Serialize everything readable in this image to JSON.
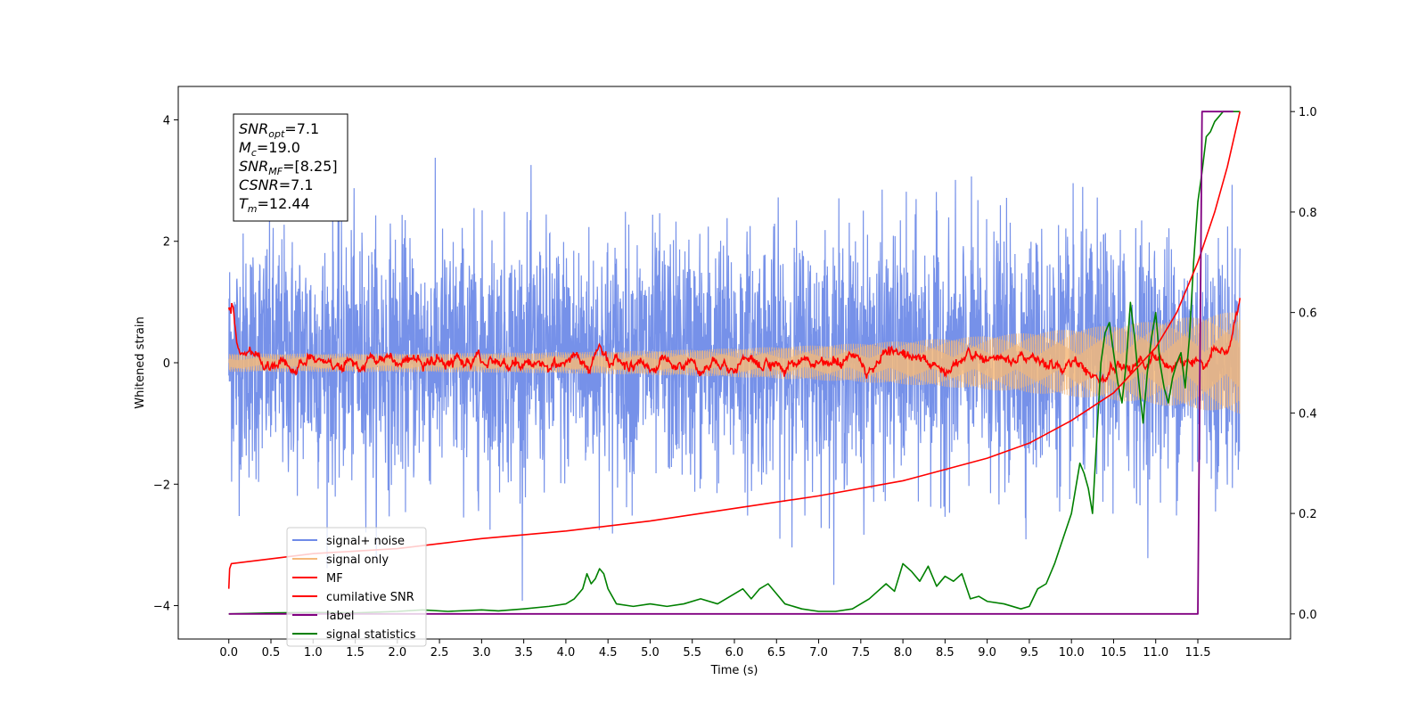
{
  "chart_data": {
    "type": "line",
    "xlabel": "Time (s)",
    "ylabel": "Whitened strain",
    "xlim": [
      -0.6,
      12.6
    ],
    "ylim": [
      -4.55,
      4.55
    ],
    "y2lim": [
      -0.05,
      1.05
    ],
    "x_ticks": [
      0.0,
      0.5,
      1.0,
      1.5,
      2.0,
      2.5,
      3.0,
      3.5,
      4.0,
      4.5,
      5.0,
      5.5,
      6.0,
      6.5,
      7.0,
      7.5,
      8.0,
      8.5,
      9.0,
      9.5,
      10.0,
      10.5,
      11.0,
      11.5
    ],
    "x_tick_labels": [
      "0.0",
      "0.5",
      "1.0",
      "1.5",
      "2.0",
      "2.5",
      "3.0",
      "3.5",
      "4.0",
      "4.5",
      "5.0",
      "5.5",
      "6.0",
      "6.5",
      "7.0",
      "7.5",
      "8.0",
      "8.5",
      "9.0",
      "9.5",
      "10.0",
      "10.5",
      "11.0",
      "11.5"
    ],
    "y_ticks": [
      -4,
      -2,
      0,
      2,
      4
    ],
    "y_tick_labels": [
      "−4",
      "−2",
      "0",
      "2",
      "4"
    ],
    "y2_ticks": [
      0.0,
      0.2,
      0.4,
      0.6,
      0.8,
      1.0
    ],
    "y2_tick_labels": [
      "0.0",
      "0.2",
      "0.4",
      "0.6",
      "0.8",
      "1.0"
    ],
    "grid": false,
    "legend_position": "bottom-left",
    "annotation": {
      "lines": [
        {
          "sym": "SNR",
          "sub": "opt",
          "rest": "=7.1"
        },
        {
          "sym": "M",
          "sub": "c",
          "rest": "=19.0"
        },
        {
          "sym": "SNR",
          "sub": "MF",
          "rest": "=[8.25]"
        },
        {
          "sym": "CSNR",
          "sub": "",
          "rest": "=7.1"
        },
        {
          "sym": "T",
          "sub": "m",
          "rest": "=12.44"
        }
      ]
    },
    "series": [
      {
        "name": "signal+ noise",
        "color": "#6f8be8",
        "axis": "left",
        "noise_envelope": {
          "x_range": [
            0.0,
            12.0
          ],
          "typical_range": [
            -2.7,
            2.9
          ],
          "extremes": [
            -4.15,
            4.1
          ]
        }
      },
      {
        "name": "signal only",
        "color": "#f5b87a",
        "axis": "left",
        "chirp": {
          "x_range": [
            0.0,
            12.0
          ],
          "amplitude_start": 0.15,
          "amplitude_end": 0.85
        }
      },
      {
        "name": "MF",
        "color": "#ff0000",
        "axis": "left",
        "x": [
          0.0,
          0.05,
          0.1,
          0.2,
          0.4,
          0.8,
          1.5,
          2.5,
          4.0,
          6.0,
          8.0,
          9.5,
          10.5,
          11.5,
          11.9,
          12.0
        ],
        "y": [
          0.9,
          0.95,
          0.3,
          0.2,
          0.05,
          0.0,
          0.05,
          0.0,
          0.0,
          0.0,
          0.05,
          -0.05,
          -0.05,
          0.0,
          0.3,
          0.95
        ]
      },
      {
        "name": "cumilative SNR",
        "color": "#ff0000",
        "axis": "right",
        "x": [
          0.0,
          0.01,
          0.03,
          1.0,
          2.0,
          3.0,
          4.0,
          5.0,
          6.0,
          7.0,
          8.0,
          9.0,
          9.5,
          10.0,
          10.5,
          11.0,
          11.25,
          11.5,
          11.7,
          11.85,
          12.0
        ],
        "y": [
          0.05,
          0.09,
          0.1,
          0.12,
          0.13,
          0.15,
          0.165,
          0.185,
          0.21,
          0.235,
          0.265,
          0.31,
          0.34,
          0.385,
          0.44,
          0.53,
          0.6,
          0.7,
          0.8,
          0.89,
          1.0
        ]
      },
      {
        "name": "label",
        "color": "#800080",
        "axis": "right",
        "x": [
          0.0,
          11.5,
          11.55,
          11.92
        ],
        "y": [
          0.0,
          0.0,
          1.0,
          1.0
        ]
      },
      {
        "name": "signal statistics",
        "color": "#008000",
        "axis": "right",
        "x": [
          0.0,
          0.5,
          1.0,
          1.5,
          2.0,
          2.3,
          2.6,
          3.0,
          3.2,
          3.5,
          3.8,
          4.0,
          4.1,
          4.2,
          4.25,
          4.3,
          4.35,
          4.4,
          4.45,
          4.5,
          4.6,
          4.8,
          5.0,
          5.2,
          5.4,
          5.6,
          5.8,
          6.0,
          6.1,
          6.2,
          6.3,
          6.4,
          6.5,
          6.6,
          6.8,
          7.0,
          7.2,
          7.4,
          7.5,
          7.6,
          7.7,
          7.8,
          7.9,
          8.0,
          8.1,
          8.2,
          8.3,
          8.4,
          8.5,
          8.6,
          8.7,
          8.8,
          8.9,
          9.0,
          9.2,
          9.4,
          9.5,
          9.6,
          9.7,
          9.8,
          9.9,
          10.0,
          10.1,
          10.15,
          10.2,
          10.25,
          10.3,
          10.35,
          10.4,
          10.45,
          10.5,
          10.55,
          10.6,
          10.65,
          10.7,
          10.75,
          10.8,
          10.85,
          10.9,
          10.95,
          11.0,
          11.05,
          11.1,
          11.15,
          11.2,
          11.25,
          11.3,
          11.35,
          11.4,
          11.45,
          11.5,
          11.55,
          11.6,
          11.65,
          11.7,
          11.75,
          11.8,
          11.85,
          11.9,
          11.95,
          12.0
        ],
        "y": [
          0.0,
          0.002,
          0.003,
          0.002,
          0.005,
          0.008,
          0.005,
          0.008,
          0.006,
          0.01,
          0.015,
          0.02,
          0.03,
          0.05,
          0.08,
          0.06,
          0.07,
          0.09,
          0.08,
          0.05,
          0.02,
          0.015,
          0.02,
          0.015,
          0.02,
          0.03,
          0.02,
          0.04,
          0.05,
          0.03,
          0.05,
          0.06,
          0.04,
          0.02,
          0.01,
          0.005,
          0.005,
          0.01,
          0.02,
          0.03,
          0.045,
          0.06,
          0.045,
          0.1,
          0.085,
          0.065,
          0.095,
          0.055,
          0.075,
          0.065,
          0.08,
          0.03,
          0.035,
          0.025,
          0.02,
          0.01,
          0.015,
          0.05,
          0.06,
          0.1,
          0.15,
          0.2,
          0.3,
          0.28,
          0.25,
          0.2,
          0.35,
          0.5,
          0.56,
          0.58,
          0.52,
          0.46,
          0.42,
          0.5,
          0.62,
          0.55,
          0.46,
          0.38,
          0.48,
          0.55,
          0.6,
          0.5,
          0.45,
          0.42,
          0.47,
          0.5,
          0.52,
          0.45,
          0.55,
          0.7,
          0.82,
          0.88,
          0.95,
          0.96,
          0.98,
          0.99,
          1.0,
          1.0,
          1.0,
          1.0,
          1.0
        ]
      }
    ]
  }
}
